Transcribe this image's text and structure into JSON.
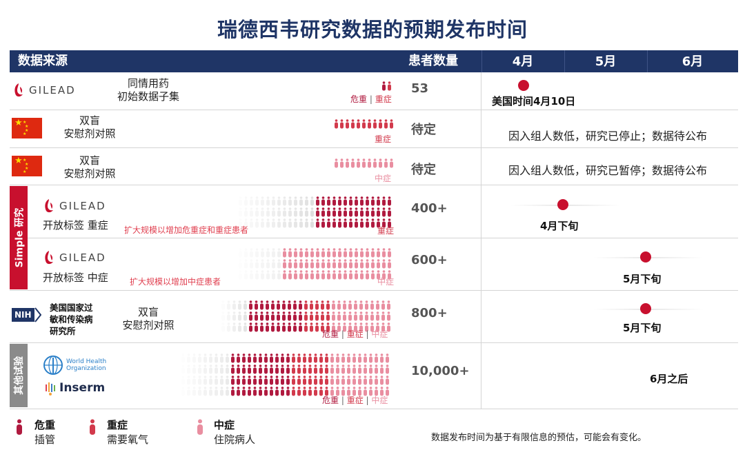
{
  "title": "瑞德西韦研究数据的预期发布时间",
  "header": {
    "source": "数据来源",
    "count": "患者数量",
    "months": [
      "4月",
      "5月",
      "6月"
    ]
  },
  "colors": {
    "critical": "#b01a3f",
    "severe": "#d23a4c",
    "moderate": "#e98ea0",
    "navy": "#1f3566",
    "dot": "#c8102e"
  },
  "rows": [
    {
      "source": "GILEAD",
      "desc": [
        "同情用药",
        "初始数据子集"
      ],
      "severity": [
        "危重",
        "重症"
      ],
      "count": "53",
      "timing": "美国时间4月10日",
      "timing_position": 0.55,
      "people": {
        "critical": 2,
        "severe": 2,
        "moderate": 0
      }
    },
    {
      "source": "China flag",
      "desc": [
        "双盲",
        "安慰剂对照"
      ],
      "severity": [
        "重症"
      ],
      "count": "待定",
      "status": "因入组人数低，研究已停止；数据待公布"
    },
    {
      "source": "China flag",
      "desc": [
        "双盲",
        "安慰剂对照"
      ],
      "severity": [
        "中症"
      ],
      "count": "待定",
      "status": "因入组人数低，研究已暂停；数据待公布"
    },
    {
      "source": "GILEAD",
      "desc": [
        "开放标签 重症"
      ],
      "note": "扩大规模以增加危重症和重症患者",
      "severity": [
        "重症"
      ],
      "count": "400+",
      "timing": "4月下旬",
      "timing_position": 0.8
    },
    {
      "source": "GILEAD",
      "desc": [
        "开放标签 中症"
      ],
      "note": "扩大规模以增加中症患者",
      "severity": [
        "中症"
      ],
      "count": "600+",
      "timing": "5月下旬",
      "timing_position": 0.8
    },
    {
      "source": "NIH",
      "source_name": "美国国家过敏和传染病研究所",
      "source_lines": [
        "美国国家过",
        "敏和传染病",
        "研究所"
      ],
      "desc": [
        "双盲",
        "安慰剂对照"
      ],
      "severity": [
        "危重",
        "重症",
        "中症"
      ],
      "count": "800+",
      "timing": "5月下旬",
      "timing_position": 0.8
    },
    {
      "source": "World Health Organization / Inserm",
      "who_lines": [
        "World Health",
        "Organization"
      ],
      "inserm": "Inserm",
      "severity": [
        "危重",
        "重症",
        "中症"
      ],
      "count": "10,000+",
      "timing": "6月之后"
    }
  ],
  "sidebars": {
    "simple": "Simple 研究",
    "other": "其他试验"
  },
  "legend": [
    {
      "title": "危重",
      "sub": "插管",
      "color": "#b01a3f"
    },
    {
      "title": "重症",
      "sub": "需要氧气",
      "color": "#d23a4c"
    },
    {
      "title": "中症",
      "sub": "住院病人",
      "color": "#e98ea0"
    }
  ],
  "footnote": "数据发布时间为基于有限信息的预估，可能会有变化。"
}
